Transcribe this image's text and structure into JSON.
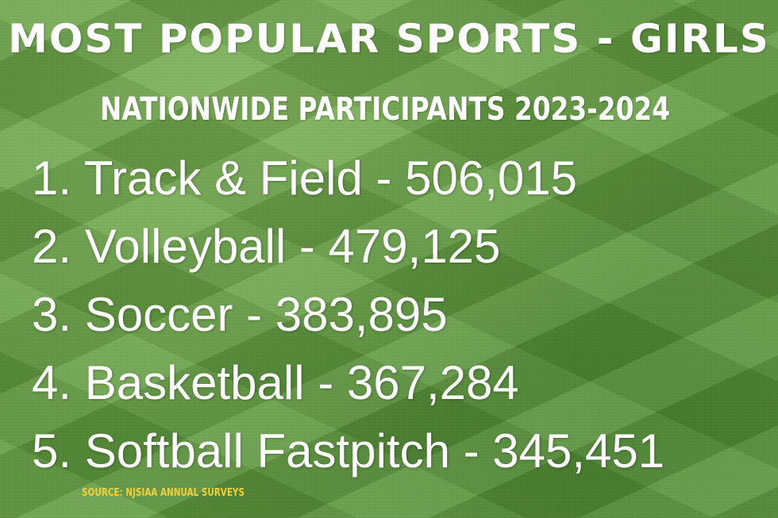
{
  "title": "MOST POPULAR SPORTS - GIRLS",
  "subtitle": "NATIONWIDE PARTICIPANTS 2023-2024",
  "items": [
    {
      "text": "1. Track & Field  - 506,015",
      "rank": 1,
      "sport": "Track & Field",
      "participants": 506015
    },
    {
      "text": "2. Volleyball - 479,125",
      "rank": 2,
      "sport": "Volleyball",
      "participants": 479125
    },
    {
      "text": "3. Soccer - 383,895",
      "rank": 3,
      "sport": "Soccer",
      "participants": 383895
    },
    {
      "text": "4. Basketball - 367,284",
      "rank": 4,
      "sport": "Basketball",
      "participants": 367284
    },
    {
      "text": "5. Softball Fastpitch - 345,451",
      "rank": 5,
      "sport": "Softball Fastpitch",
      "participants": 345451
    }
  ],
  "source": "SOURCE: NJSIAA ANNUAL SURVEYS",
  "colors": {
    "background": "#5f9a3e",
    "text": "#ffffff",
    "source": "#f2cf3a"
  }
}
